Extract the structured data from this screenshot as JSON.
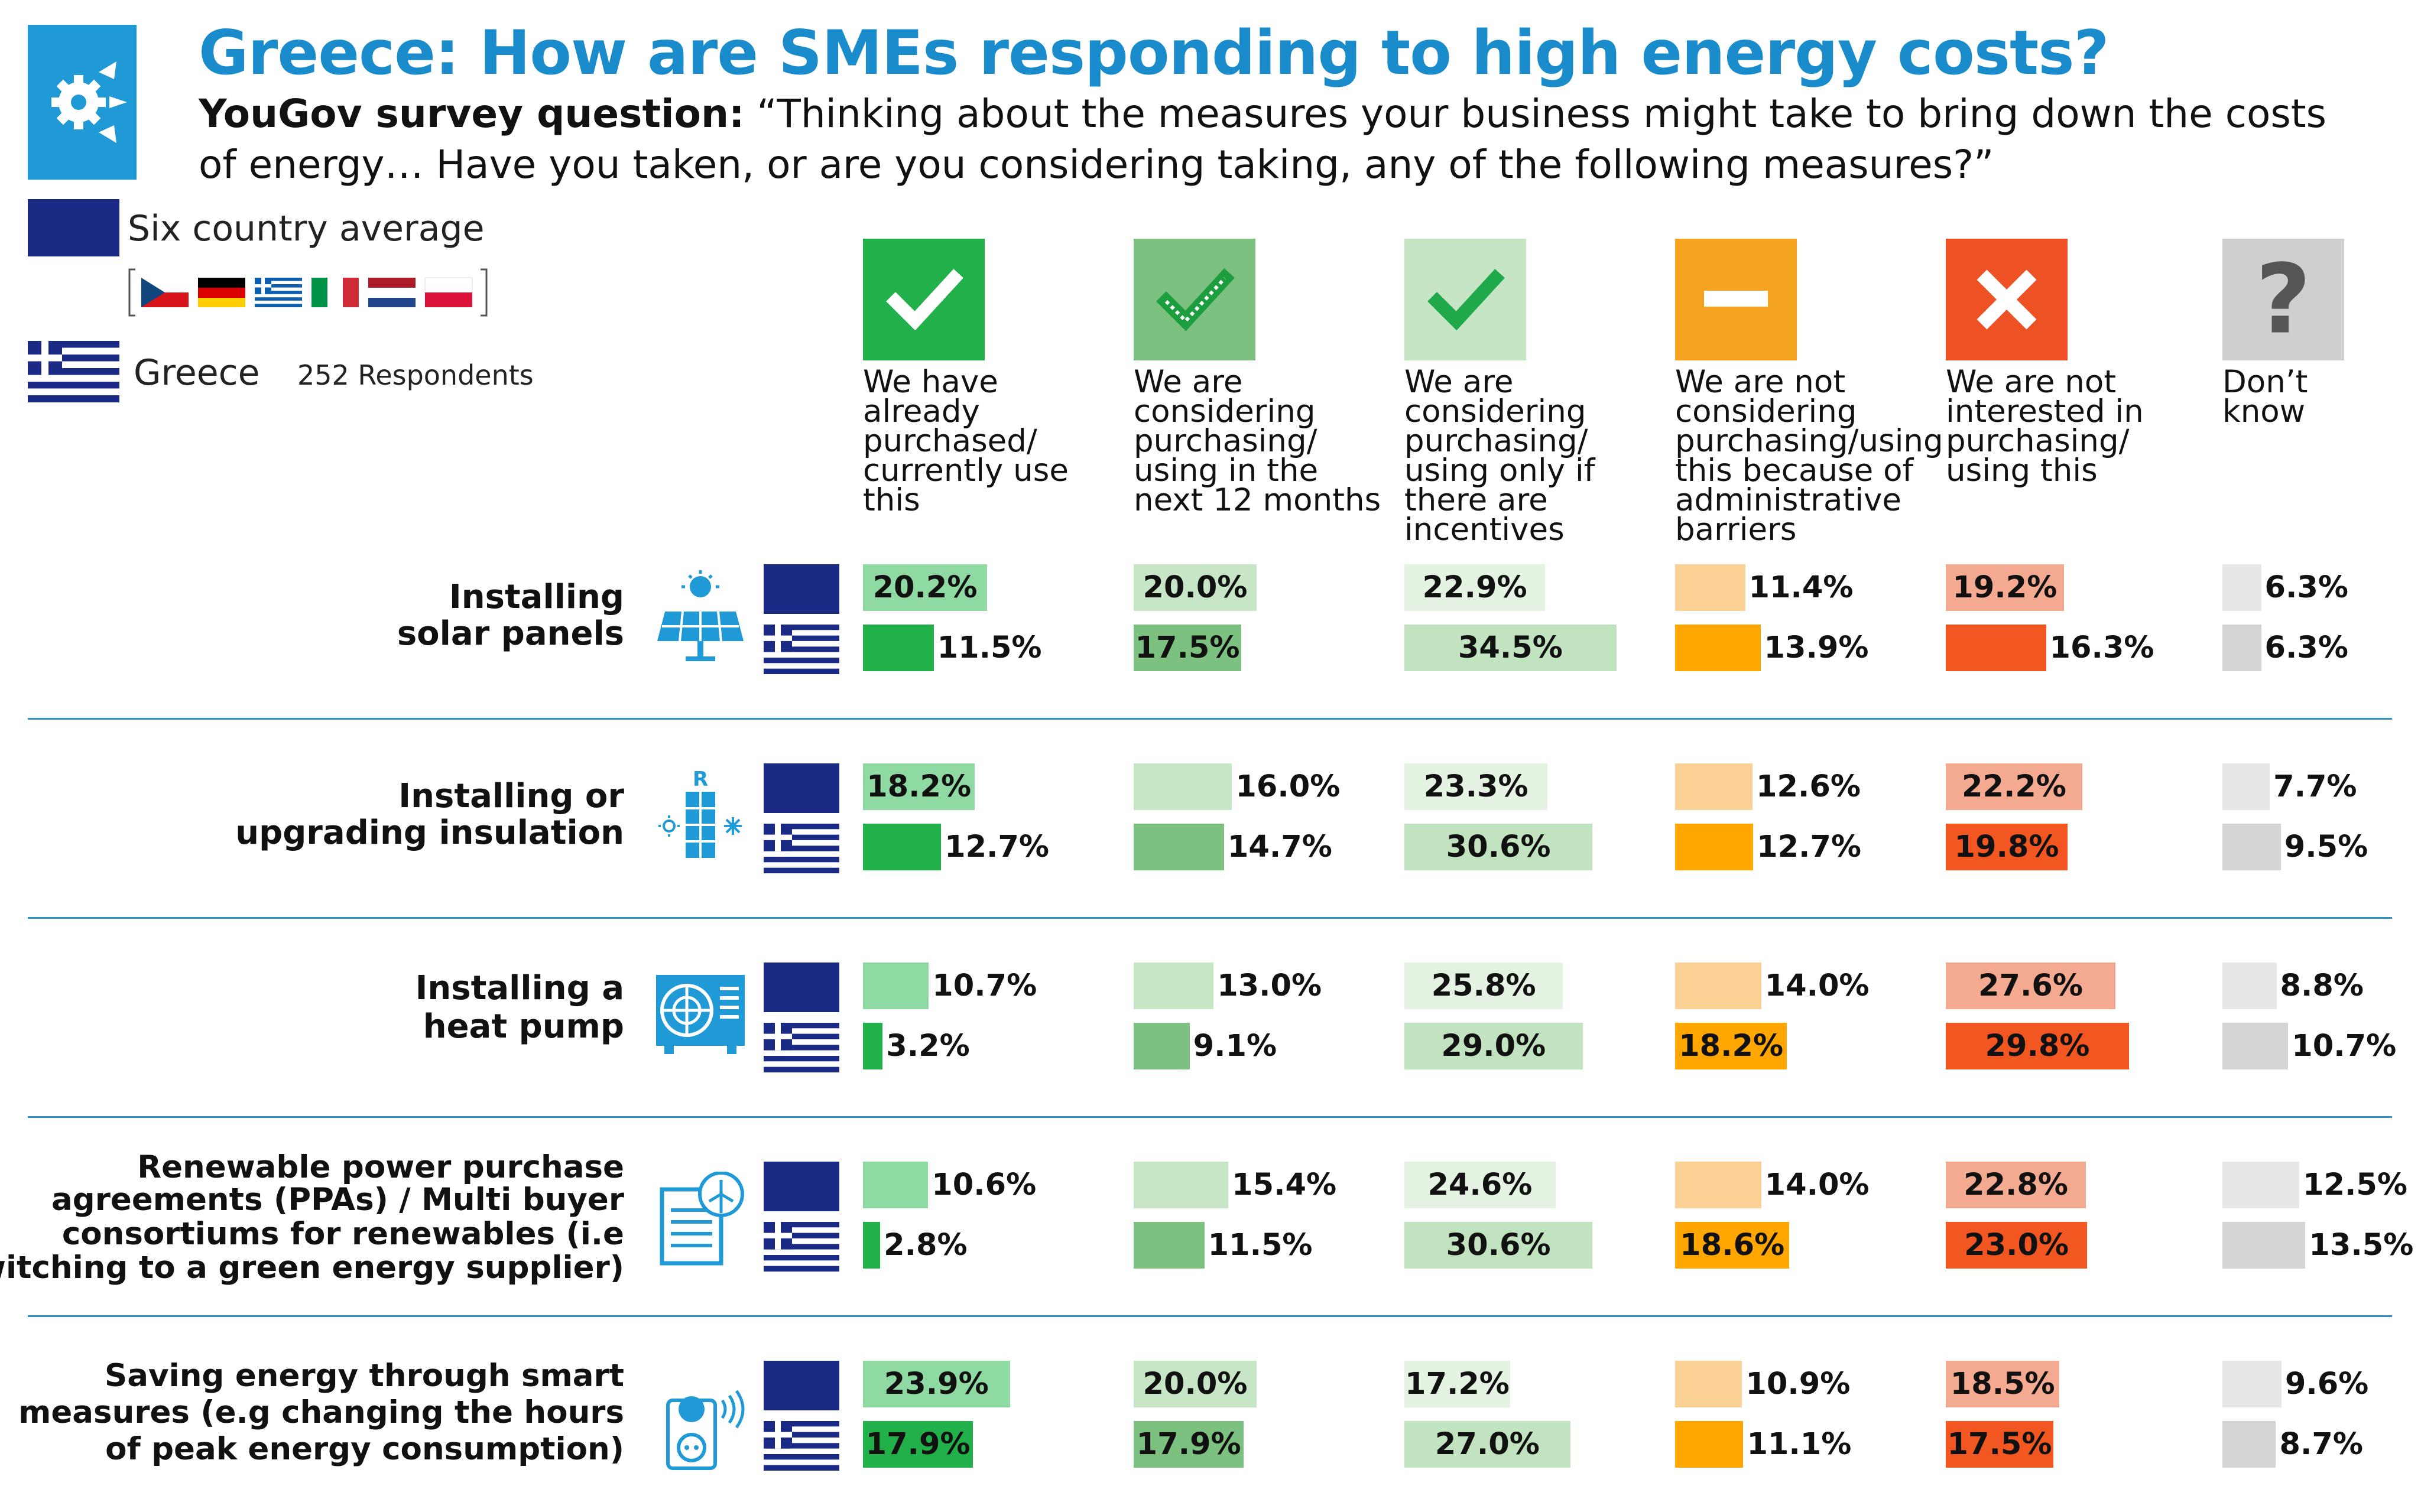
{
  "title": "Greece: How are SMEs responding to high energy costs?",
  "question_label": "YouGov survey question:",
  "question_text": "“Thinking about the measures your business might take to bring down the costs of energy… Have you taken, or are you considering taking, any of the following measures?”",
  "legend": {
    "average_label": "Six country average",
    "country_label": "Greece",
    "respondents": "252 Respondents",
    "average_color": "#1b2a84",
    "flags": [
      "Czech Republic",
      "Germany",
      "Greece",
      "Italy",
      "Netherlands",
      "Poland"
    ]
  },
  "columns": [
    {
      "label": "We have already purchased/ currently use this",
      "icon": "check-icon",
      "icon_bg": "#22b04b",
      "avg_color": "#8fd9a2",
      "gr_color": "#22b04b"
    },
    {
      "label": "We are considering purchasing/ using in the next 12 months",
      "icon": "dotted-check-icon",
      "icon_bg": "#7cc17f",
      "avg_color": "#c6e6c6",
      "gr_color": "#7cc17f"
    },
    {
      "label": "We are considering purchasing/ using only if there are incentives",
      "icon": "light-check-icon",
      "icon_bg": "#c6e5c4",
      "avg_color": "#e4f3e2",
      "gr_color": "#c2e3c0"
    },
    {
      "label": "We are not considering purchasing/using this because of administrative barriers",
      "icon": "minus-icon",
      "icon_bg": "#f4a321",
      "avg_color": "#fbd196",
      "gr_color": "#ffa600"
    },
    {
      "label": "We are not interested in purchasing/ using this",
      "icon": "cross-icon",
      "icon_bg": "#ee5124",
      "avg_color": "#f4aa91",
      "gr_color": "#f25721"
    },
    {
      "label": "Don’t know",
      "icon": "question-icon",
      "icon_bg": "#cfcfcf",
      "avg_color": "#e7e7e7",
      "gr_color": "#d4d4d4"
    }
  ],
  "rows": [
    {
      "label": "Installing solar panels",
      "icon": "solar-panel-icon"
    },
    {
      "label": "Installing or upgrading insulation",
      "icon": "insulation-icon"
    },
    {
      "label": "Installing a heat pump",
      "icon": "heat-pump-icon"
    },
    {
      "label": "Renewable power purchase agreements (PPAs) / Multi buyer consortiums for renewables (i.e switching to a green energy supplier)",
      "icon": "green-contract-icon"
    },
    {
      "label": "Saving energy through smart measures (e.g changing the hours of peak energy consumption)",
      "icon": "smart-plug-icon"
    }
  ],
  "chart_data": {
    "type": "bar",
    "title": "Greece: How are SMEs responding to high energy costs?",
    "unit": "%",
    "categories": [
      "Installing solar panels",
      "Installing or upgrading insulation",
      "Installing a heat pump",
      "Renewable power purchase agreements (PPAs) / Multi buyer consortiums for renewables (i.e switching to a green energy supplier)",
      "Saving energy through smart measures (e.g changing the hours of peak energy consumption)"
    ],
    "series": [
      {
        "name": "Six country average",
        "values": [
          [
            20.2,
            20.0,
            22.9,
            11.4,
            19.2,
            6.3
          ],
          [
            18.2,
            16.0,
            23.3,
            12.6,
            22.2,
            7.7
          ],
          [
            10.7,
            13.0,
            25.8,
            14.0,
            27.6,
            8.8
          ],
          [
            10.6,
            15.4,
            24.6,
            14.0,
            22.8,
            12.5
          ],
          [
            23.9,
            20.0,
            17.2,
            10.9,
            18.5,
            9.6
          ]
        ]
      },
      {
        "name": "Greece",
        "values": [
          [
            11.5,
            17.5,
            34.5,
            13.9,
            16.3,
            6.3
          ],
          [
            12.7,
            14.7,
            30.6,
            12.7,
            19.8,
            9.5
          ],
          [
            3.2,
            9.1,
            29.0,
            18.2,
            29.8,
            10.7
          ],
          [
            2.8,
            11.5,
            30.6,
            18.6,
            23.0,
            13.5
          ],
          [
            17.9,
            17.9,
            27.0,
            11.1,
            17.5,
            8.7
          ]
        ]
      }
    ],
    "labels": [
      [
        [
          "20.2%",
          "20.0%",
          "22.9%",
          "11.4%",
          "19.2%",
          "6.3%"
        ],
        [
          "11.5%",
          "17.5%",
          "34.5%",
          "13.9%",
          "16.3%",
          "6.3%"
        ]
      ],
      [
        [
          "18.2%",
          "16.0%",
          "23.3%",
          "12.6%",
          "22.2%",
          "7.7%"
        ],
        [
          "12.7%",
          "14.7%",
          "30.6%",
          "12.7%",
          "19.8%",
          "9.5%"
        ]
      ],
      [
        [
          "10.7%",
          "13.0%",
          "25.8%",
          "14.0%",
          "27.6%",
          "8.8%"
        ],
        [
          "3.2%",
          "9.1%",
          "29.0%",
          "18.2%",
          "29.8%",
          "10.7%"
        ]
      ],
      [
        [
          "10.6%",
          "15.4%",
          "24.6%",
          "14.0%",
          "22.8%",
          "12.5%"
        ],
        [
          "2.8%",
          "11.5%",
          "30.6%",
          "18.6%",
          "23.0%",
          "13.5%"
        ]
      ],
      [
        [
          "23.9%",
          "20.0%",
          "17.2%",
          "10.9%",
          "18.5%",
          "9.6%"
        ],
        [
          "17.9%",
          "17.9%",
          "27.0%",
          "11.1%",
          "17.5%",
          "8.7%"
        ]
      ]
    ]
  }
}
